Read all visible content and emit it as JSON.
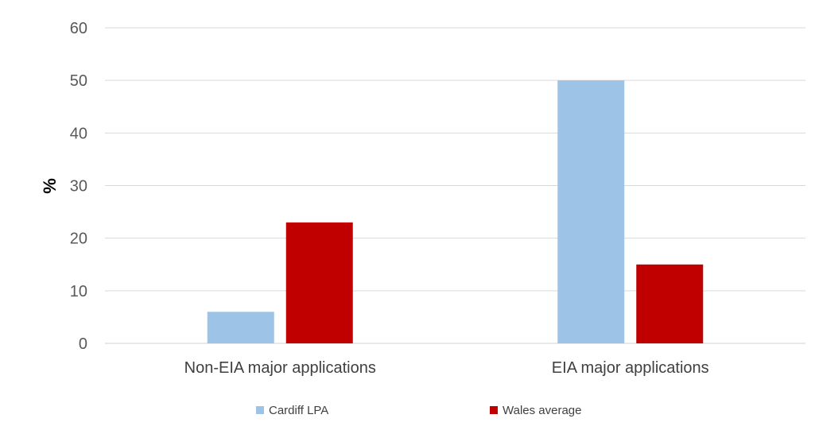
{
  "chart_data": {
    "type": "bar",
    "categories": [
      "Non-EIA major applications",
      "EIA major applications"
    ],
    "series": [
      {
        "name": "Cardiff LPA",
        "values": [
          6,
          50
        ],
        "color": "#9DC3E6"
      },
      {
        "name": "Wales average",
        "values": [
          23,
          15
        ],
        "color": "#C00000"
      }
    ],
    "ylabel": "%",
    "ylim": [
      0,
      60
    ],
    "yticks": [
      0,
      10,
      20,
      30,
      40,
      50,
      60
    ],
    "grid": true,
    "legend_position": "bottom"
  }
}
